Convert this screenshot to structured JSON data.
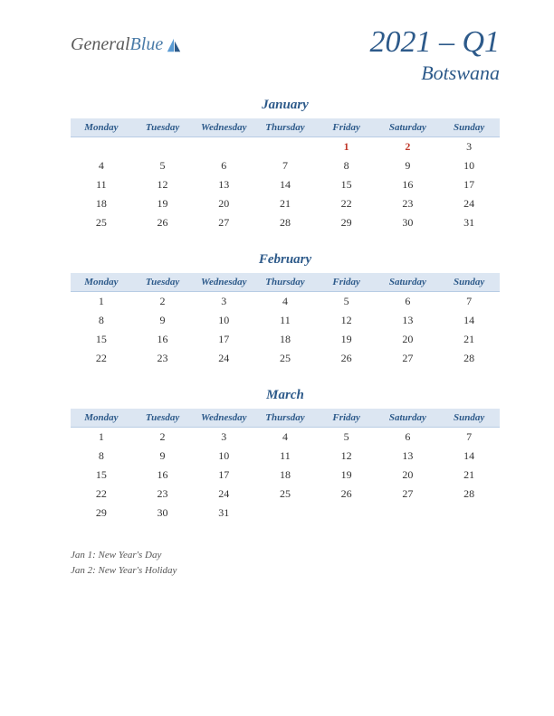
{
  "logo": {
    "general": "General",
    "blue": "Blue"
  },
  "title": {
    "quarter": "2021 – Q1",
    "country": "Botswana"
  },
  "weekdays": [
    "Monday",
    "Tuesday",
    "Wednesday",
    "Thursday",
    "Friday",
    "Saturday",
    "Sunday"
  ],
  "header_bg": "#dce6f2",
  "header_text_color": "#2d5a8a",
  "holiday_color": "#c0392b",
  "months": [
    {
      "name": "January",
      "weeks": [
        [
          "",
          "",
          "",
          "",
          "1",
          "2",
          "3"
        ],
        [
          "4",
          "5",
          "6",
          "7",
          "8",
          "9",
          "10"
        ],
        [
          "11",
          "12",
          "13",
          "14",
          "15",
          "16",
          "17"
        ],
        [
          "18",
          "19",
          "20",
          "21",
          "22",
          "23",
          "24"
        ],
        [
          "25",
          "26",
          "27",
          "28",
          "29",
          "30",
          "31"
        ]
      ],
      "holidays": [
        "1",
        "2"
      ]
    },
    {
      "name": "February",
      "weeks": [
        [
          "1",
          "2",
          "3",
          "4",
          "5",
          "6",
          "7"
        ],
        [
          "8",
          "9",
          "10",
          "11",
          "12",
          "13",
          "14"
        ],
        [
          "15",
          "16",
          "17",
          "18",
          "19",
          "20",
          "21"
        ],
        [
          "22",
          "23",
          "24",
          "25",
          "26",
          "27",
          "28"
        ]
      ],
      "holidays": []
    },
    {
      "name": "March",
      "weeks": [
        [
          "1",
          "2",
          "3",
          "4",
          "5",
          "6",
          "7"
        ],
        [
          "8",
          "9",
          "10",
          "11",
          "12",
          "13",
          "14"
        ],
        [
          "15",
          "16",
          "17",
          "18",
          "19",
          "20",
          "21"
        ],
        [
          "22",
          "23",
          "24",
          "25",
          "26",
          "27",
          "28"
        ],
        [
          "29",
          "30",
          "31",
          "",
          "",
          "",
          ""
        ]
      ],
      "holidays": []
    }
  ],
  "notes": [
    "Jan 1: New Year's Day",
    "Jan 2: New Year's Holiday"
  ]
}
